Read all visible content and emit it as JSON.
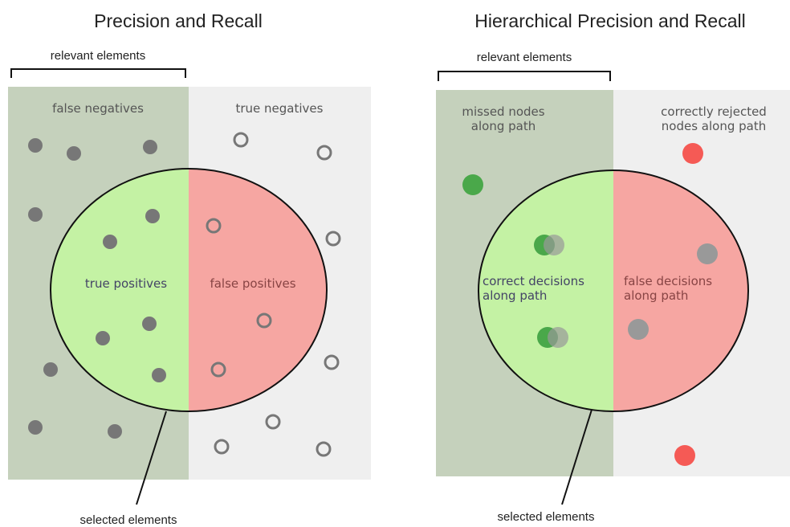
{
  "panels": [
    {
      "title": "Precision and Recall",
      "bracket_label": "relevant elements",
      "regions": {
        "false_negatives": [
          "false negatives"
        ],
        "true_negatives": [
          "true negatives"
        ],
        "true_positives": [
          "true positives"
        ],
        "false_positives": [
          "false positives"
        ]
      },
      "selected_label": "selected elements"
    },
    {
      "title": "Hierarchical Precision and Recall",
      "bracket_label": "relevant elements",
      "regions": {
        "false_negatives": [
          "missed nodes",
          "along path"
        ],
        "true_negatives": [
          "correctly rejected",
          "nodes along path"
        ],
        "true_positives": [
          "correct decisions",
          "along path"
        ],
        "false_positives": [
          "false decisions",
          "along path"
        ]
      },
      "selected_label": "selected elements"
    }
  ]
}
